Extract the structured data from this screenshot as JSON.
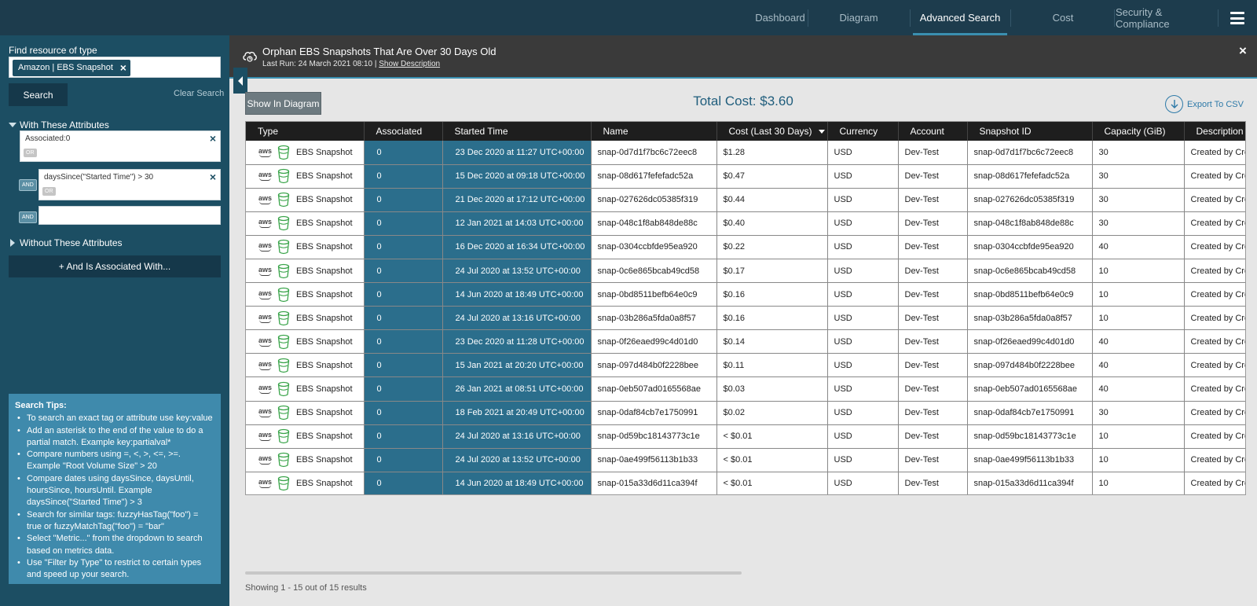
{
  "nav": {
    "tabs": [
      {
        "label": "Dashboard",
        "active": false
      },
      {
        "label": "Diagram",
        "active": false
      },
      {
        "label": "Advanced Search",
        "active": true
      },
      {
        "label": "Cost",
        "active": false
      },
      {
        "label": "Security & Compliance",
        "active": false
      }
    ]
  },
  "sidebar": {
    "find_label": "Find resource of type",
    "type_chip": "Amazon | EBS Snapshot",
    "search_label": "Search",
    "clear_label": "Clear Search",
    "with_label": "With These Attributes",
    "attributes": [
      {
        "text": "Associated:0",
        "or": "OR"
      },
      {
        "text": "daysSince(\"Started Time\") > 30",
        "or": "OR",
        "and": "AND"
      }
    ],
    "empty_and": "AND",
    "without_label": "Without These Attributes",
    "assoc_label": "+ And Is Associated With...",
    "tips_title": "Search Tips:",
    "tips": [
      "To search an exact tag or attribute use key:value",
      "Add an asterisk to the end of the value to do a partial match. Example key:partialval*",
      "Compare numbers using =, <, >, <=, >=. Example \"Root Volume Size\" > 20",
      "Compare dates using daysSince, daysUntil, hoursSince, hoursUntil. Example daysSince(\"Started Time\") > 3",
      "Search for similar tags: fuzzyHasTag(\"foo\") = true or fuzzyMatchTag(\"foo\") = \"bar\"",
      "Select \"Metric...\" from the dropdown to search based on metrics data.",
      "Use \"Filter by Type\" to restrict to certain types and speed up your search."
    ]
  },
  "banner": {
    "title": "Orphan EBS Snapshots That Are Over 30 Days Old",
    "last_run": "Last Run: 24 March 2021 08:10 |",
    "show_desc": "Show Description"
  },
  "toolbar": {
    "show_diagram": "Show In Diagram",
    "total_cost": "Total Cost: $3.60",
    "export": "Export To CSV"
  },
  "table": {
    "columns": [
      "Type",
      "Associated",
      "Started Time",
      "Name",
      "Cost (Last 30 Days)",
      "Currency",
      "Account",
      "Snapshot ID",
      "Capacity (GiB)",
      "Description"
    ],
    "rows": [
      {
        "type": "EBS Snapshot",
        "associated": "0",
        "started": "23 Dec 2020 at 11:27 UTC+00:00",
        "name": "snap-0d7d1f7bc6c72eec8",
        "cost": "$1.28",
        "currency": "USD",
        "account": "Dev-Test",
        "snapshot_id": "snap-0d7d1f7bc6c72eec8",
        "capacity": "30",
        "description": "Created by Cre"
      },
      {
        "type": "EBS Snapshot",
        "associated": "0",
        "started": "15 Dec 2020 at 09:18 UTC+00:00",
        "name": "snap-08d617fefefadc52a",
        "cost": "$0.47",
        "currency": "USD",
        "account": "Dev-Test",
        "snapshot_id": "snap-08d617fefefadc52a",
        "capacity": "30",
        "description": "Created by Cre"
      },
      {
        "type": "EBS Snapshot",
        "associated": "0",
        "started": "21 Dec 2020 at 17:12 UTC+00:00",
        "name": "snap-027626dc05385f319",
        "cost": "$0.44",
        "currency": "USD",
        "account": "Dev-Test",
        "snapshot_id": "snap-027626dc05385f319",
        "capacity": "30",
        "description": "Created by Cre"
      },
      {
        "type": "EBS Snapshot",
        "associated": "0",
        "started": "12 Jan 2021 at 14:03 UTC+00:00",
        "name": "snap-048c1f8ab848de88c",
        "cost": "$0.40",
        "currency": "USD",
        "account": "Dev-Test",
        "snapshot_id": "snap-048c1f8ab848de88c",
        "capacity": "30",
        "description": "Created by Cre"
      },
      {
        "type": "EBS Snapshot",
        "associated": "0",
        "started": "16 Dec 2020 at 16:34 UTC+00:00",
        "name": "snap-0304ccbfde95ea920",
        "cost": "$0.22",
        "currency": "USD",
        "account": "Dev-Test",
        "snapshot_id": "snap-0304ccbfde95ea920",
        "capacity": "40",
        "description": "Created by Cre"
      },
      {
        "type": "EBS Snapshot",
        "associated": "0",
        "started": "24 Jul 2020 at 13:52 UTC+00:00",
        "name": "snap-0c6e865bcab49cd58",
        "cost": "$0.17",
        "currency": "USD",
        "account": "Dev-Test",
        "snapshot_id": "snap-0c6e865bcab49cd58",
        "capacity": "10",
        "description": "Created by Cre"
      },
      {
        "type": "EBS Snapshot",
        "associated": "0",
        "started": "14 Jun 2020 at 18:49 UTC+00:00",
        "name": "snap-0bd8511befb64e0c9",
        "cost": "$0.16",
        "currency": "USD",
        "account": "Dev-Test",
        "snapshot_id": "snap-0bd8511befb64e0c9",
        "capacity": "10",
        "description": "Created by Cre"
      },
      {
        "type": "EBS Snapshot",
        "associated": "0",
        "started": "24 Jul 2020 at 13:16 UTC+00:00",
        "name": "snap-03b286a5fda0a8f57",
        "cost": "$0.16",
        "currency": "USD",
        "account": "Dev-Test",
        "snapshot_id": "snap-03b286a5fda0a8f57",
        "capacity": "10",
        "description": "Created by Cre"
      },
      {
        "type": "EBS Snapshot",
        "associated": "0",
        "started": "23 Dec 2020 at 11:28 UTC+00:00",
        "name": "snap-0f26eaed99c4d01d0",
        "cost": "$0.14",
        "currency": "USD",
        "account": "Dev-Test",
        "snapshot_id": "snap-0f26eaed99c4d01d0",
        "capacity": "40",
        "description": "Created by Cre"
      },
      {
        "type": "EBS Snapshot",
        "associated": "0",
        "started": "15 Jan 2021 at 20:20 UTC+00:00",
        "name": "snap-097d484b0f2228bee",
        "cost": "$0.11",
        "currency": "USD",
        "account": "Dev-Test",
        "snapshot_id": "snap-097d484b0f2228bee",
        "capacity": "40",
        "description": "Created by Cre"
      },
      {
        "type": "EBS Snapshot",
        "associated": "0",
        "started": "26 Jan 2021 at 08:51 UTC+00:00",
        "name": "snap-0eb507ad0165568ae",
        "cost": "$0.03",
        "currency": "USD",
        "account": "Dev-Test",
        "snapshot_id": "snap-0eb507ad0165568ae",
        "capacity": "40",
        "description": "Created by Cre"
      },
      {
        "type": "EBS Snapshot",
        "associated": "0",
        "started": "18 Feb 2021 at 20:49 UTC+00:00",
        "name": "snap-0daf84cb7e1750991",
        "cost": "$0.02",
        "currency": "USD",
        "account": "Dev-Test",
        "snapshot_id": "snap-0daf84cb7e1750991",
        "capacity": "30",
        "description": "Created by Cre"
      },
      {
        "type": "EBS Snapshot",
        "associated": "0",
        "started": "24 Jul 2020 at 13:16 UTC+00:00",
        "name": "snap-0d59bc18143773c1e",
        "cost": "< $0.01",
        "currency": "USD",
        "account": "Dev-Test",
        "snapshot_id": "snap-0d59bc18143773c1e",
        "capacity": "10",
        "description": "Created by Cre"
      },
      {
        "type": "EBS Snapshot",
        "associated": "0",
        "started": "24 Jul 2020 at 13:52 UTC+00:00",
        "name": "snap-0ae499f56113b1b33",
        "cost": "< $0.01",
        "currency": "USD",
        "account": "Dev-Test",
        "snapshot_id": "snap-0ae499f56113b1b33",
        "capacity": "10",
        "description": "Created by Cre"
      },
      {
        "type": "EBS Snapshot",
        "associated": "0",
        "started": "14 Jun 2020 at 18:49 UTC+00:00",
        "name": "snap-015a33d6d11ca394f",
        "cost": "< $0.01",
        "currency": "USD",
        "account": "Dev-Test",
        "snapshot_id": "snap-015a33d6d11ca394f",
        "capacity": "10",
        "description": "Created by Cre"
      }
    ]
  },
  "footer": {
    "results": "Showing 1 - 15 out of 15 results"
  },
  "icons": {
    "provider": "aws-logo-icon",
    "resource": "ebs-snapshot-bucket-icon",
    "banner": "cloud-sync-icon",
    "export": "download-icon",
    "menu": "hamburger-menu-icon"
  },
  "colors": {
    "nav_bg": "#1d3c4d",
    "sidebar_bg": "#1c4e63",
    "accent": "#3a8fb0",
    "highlight_col": "#2b6e8c",
    "total_cost": "#1f5d7c",
    "bucket_green": "#3aa44a"
  }
}
